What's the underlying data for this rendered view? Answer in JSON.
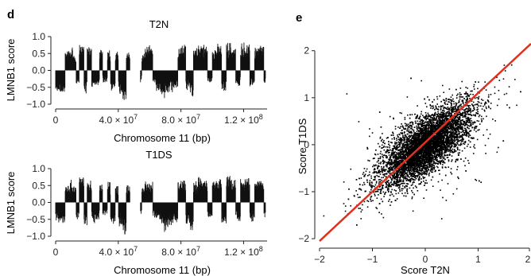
{
  "chart_data": [
    {
      "panel": "d",
      "type": "area",
      "title": "T2N",
      "xlabel": "Chromosome 11 (bp)",
      "ylabel": "LMNB1 score",
      "xlim": [
        0,
        135000000
      ],
      "ylim": [
        -1.0,
        1.0
      ],
      "x_ticks": [
        0,
        40000000,
        80000000,
        120000000
      ],
      "x_tick_labels": [
        "0",
        "4.0 × 10^7",
        "8.0 × 10^7",
        "1.2 × 10^8"
      ],
      "y_ticks": [
        1.0,
        0.5,
        0.0,
        -0.5,
        -1.0
      ],
      "y_tick_labels": [
        "1.0",
        "0.5",
        "0.0",
        "−0.5",
        "−1.0"
      ],
      "grid": false,
      "profile": {
        "x_mb": [
          0,
          4,
          6,
          9,
          11,
          13,
          15,
          18,
          20,
          23,
          25,
          28,
          30,
          33,
          35,
          38,
          40,
          43,
          45,
          48,
          50,
          55,
          57,
          60,
          62,
          64,
          67,
          69,
          72,
          75,
          78,
          80,
          83,
          86,
          88,
          91,
          94,
          97,
          100,
          103,
          106,
          109,
          112,
          115,
          118,
          121,
          124,
          127,
          130,
          133
        ],
        "score": [
          -0.55,
          -0.6,
          0.5,
          0.6,
          0.4,
          -0.35,
          0.7,
          -0.55,
          0.6,
          -0.45,
          -0.4,
          0.5,
          -0.3,
          0.55,
          -0.5,
          0.45,
          -0.6,
          -0.75,
          0.5,
          0.4,
          -0.3,
          0.4,
          0.6,
          0.55,
          -0.3,
          -0.5,
          -0.6,
          -0.7,
          -0.55,
          -0.45,
          0.6,
          0.65,
          -0.5,
          -0.7,
          0.55,
          0.7,
          0.65,
          -0.3,
          0.6,
          0.65,
          -0.5,
          0.7,
          0.6,
          -0.4,
          0.7,
          0.65,
          -0.4,
          0.6,
          0.65,
          -0.3
        ]
      }
    },
    {
      "panel": "d",
      "type": "area",
      "title": "T1DS",
      "xlabel": "Chromosome 11 (bp)",
      "ylabel": "LMNB1 score",
      "xlim": [
        0,
        135000000
      ],
      "ylim": [
        -1.0,
        1.0
      ],
      "x_ticks": [
        0,
        40000000,
        80000000,
        120000000
      ],
      "x_tick_labels": [
        "0",
        "4.0 × 10^7",
        "8.0 × 10^7",
        "1.2 × 10^8"
      ],
      "y_ticks": [
        1.0,
        0.5,
        0.0,
        -0.5,
        -1.0
      ],
      "y_tick_labels": [
        "1.0",
        "0.5",
        "0.0",
        "−0.5",
        "−1.0"
      ],
      "grid": false,
      "profile": {
        "x_mb": [
          0,
          4,
          6,
          9,
          11,
          13,
          15,
          18,
          20,
          23,
          25,
          28,
          30,
          33,
          35,
          38,
          40,
          43,
          45,
          48,
          50,
          55,
          57,
          60,
          62,
          64,
          67,
          69,
          72,
          75,
          78,
          80,
          83,
          86,
          88,
          91,
          94,
          97,
          100,
          103,
          106,
          109,
          112,
          115,
          118,
          121,
          124,
          127,
          130,
          133
        ],
        "score": [
          -0.5,
          -0.6,
          0.45,
          0.55,
          0.45,
          -0.4,
          0.65,
          -0.6,
          0.55,
          -0.5,
          -0.45,
          0.45,
          -0.35,
          0.5,
          -0.55,
          0.4,
          -0.65,
          -0.8,
          0.45,
          0.35,
          -0.35,
          0.35,
          0.55,
          0.5,
          -0.35,
          -0.5,
          -0.65,
          -0.75,
          -0.6,
          -0.5,
          0.55,
          0.6,
          -0.55,
          -0.75,
          0.5,
          0.65,
          0.6,
          -0.35,
          0.55,
          0.6,
          -0.55,
          0.65,
          0.55,
          -0.45,
          0.65,
          0.6,
          -0.45,
          0.55,
          0.6,
          -0.35
        ]
      }
    },
    {
      "panel": "e",
      "type": "scatter",
      "xlabel": "Score T2N",
      "ylabel": "Score T1DS",
      "xlim": [
        -2,
        2
      ],
      "ylim": [
        -2.1,
        2.3
      ],
      "x_ticks": [
        -2,
        -1,
        0,
        1,
        2
      ],
      "x_tick_labels": [
        "−2",
        "−1",
        "0",
        "1",
        "2"
      ],
      "y_ticks": [
        2,
        1,
        0,
        -1,
        -2
      ],
      "y_tick_labels": [
        "2",
        "1",
        "0",
        "−1",
        "−2"
      ],
      "grid": false,
      "point_color": "#000000",
      "fit_line": {
        "color": "#e0301e",
        "slope": 1.05,
        "intercept": 0.05
      },
      "point_cloud": {
        "center": [
          0,
          0
        ],
        "principal_slope": 1.0,
        "spread_along": 0.55,
        "spread_across": 0.22,
        "n_points": 7000
      }
    }
  ],
  "panel_labels": {
    "d": "d",
    "e": "e"
  },
  "colors": {
    "axis": "#222222",
    "signal": "#111111",
    "fit": "#e0301e",
    "points": "#000000"
  }
}
